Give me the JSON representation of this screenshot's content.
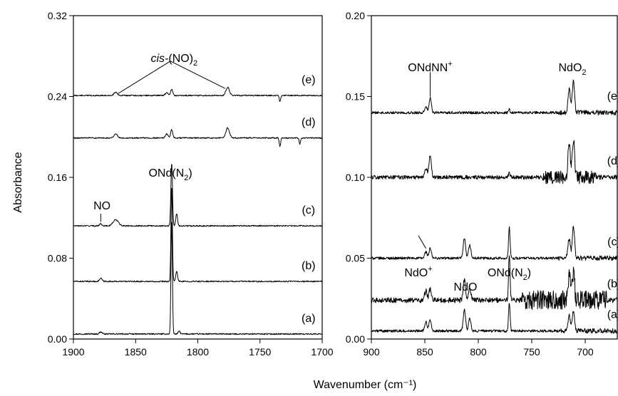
{
  "ylabel": "Absorbance",
  "xlabel": "Wavenumber (cm⁻¹)",
  "chart_data": [
    {
      "type": "line",
      "panel": "left",
      "xlim": [
        1900,
        1700
      ],
      "ylim": [
        0.0,
        0.32
      ],
      "x_ticks": [
        1900,
        1850,
        1800,
        1750,
        1700
      ],
      "y_ticks": [
        "0.00",
        "0.08",
        "0.16",
        "0.24",
        "0.32"
      ],
      "series": [
        {
          "name": "(a)",
          "baseline": 0.005,
          "peaks": [
            {
              "x": 1821,
              "h": 0.114,
              "w": 0.8
            },
            {
              "x": 1878,
              "h": 0.002,
              "w": 1.5
            },
            {
              "x": 1815,
              "h": 0.003,
              "w": 1
            }
          ]
        },
        {
          "name": "(b)",
          "baseline": 0.057,
          "peaks": [
            {
              "x": 1821,
              "h": 0.095,
              "w": 0.8
            },
            {
              "x": 1817,
              "h": 0.01,
              "w": 1
            },
            {
              "x": 1878,
              "h": 0.003,
              "w": 1.5
            }
          ]
        },
        {
          "name": "(c)",
          "baseline": 0.112,
          "peaks": [
            {
              "x": 1821,
              "h": 0.062,
              "w": 0.9
            },
            {
              "x": 1817,
              "h": 0.012,
              "w": 1
            },
            {
              "x": 1866,
              "h": 0.006,
              "w": 3
            },
            {
              "x": 1878,
              "h": 0.002,
              "w": 1.5
            }
          ]
        },
        {
          "name": "(d)",
          "baseline": 0.199,
          "peaks": [
            {
              "x": 1821,
              "h": 0.008,
              "w": 1.2
            },
            {
              "x": 1825,
              "h": 0.004,
              "w": 1.5
            },
            {
              "x": 1866,
              "h": 0.004,
              "w": 2
            },
            {
              "x": 1776,
              "h": 0.01,
              "w": 2
            },
            {
              "x": 1734,
              "h": -0.008,
              "w": 0.8
            },
            {
              "x": 1718,
              "h": -0.006,
              "w": 0.8
            }
          ]
        },
        {
          "name": "(e)",
          "baseline": 0.241,
          "peaks": [
            {
              "x": 1821,
              "h": 0.006,
              "w": 1.2
            },
            {
              "x": 1825,
              "h": 0.003,
              "w": 1.5
            },
            {
              "x": 1866,
              "h": 0.003,
              "w": 2
            },
            {
              "x": 1776,
              "h": 0.008,
              "w": 2
            },
            {
              "x": 1734,
              "h": -0.006,
              "w": 0.8
            }
          ]
        }
      ],
      "annotations": [
        {
          "id": "cis",
          "text_main": "cis-(NO)",
          "sub": "2"
        },
        {
          "id": "ond",
          "text_main": "ONd(N",
          "sub": "2",
          "tail": ")"
        },
        {
          "id": "no",
          "text_main": "NO"
        }
      ]
    },
    {
      "type": "line",
      "panel": "right",
      "xlim": [
        900,
        670
      ],
      "ylim": [
        0.0,
        0.2
      ],
      "x_ticks": [
        900,
        850,
        800,
        750,
        700
      ],
      "y_ticks": [
        "0.00",
        "0.05",
        "0.10",
        "0.15",
        "0.20"
      ],
      "series": [
        {
          "name": "(a)",
          "baseline": 0.005,
          "peaks": [
            {
              "x": 849,
              "h": 0.006,
              "w": 1.5
            },
            {
              "x": 845,
              "h": 0.007,
              "w": 1.5
            },
            {
              "x": 813,
              "h": 0.013,
              "w": 1.5
            },
            {
              "x": 808,
              "h": 0.008,
              "w": 1.5
            },
            {
              "x": 771,
              "h": 0.018,
              "w": 1
            },
            {
              "x": 715,
              "h": 0.01,
              "w": 1.5
            },
            {
              "x": 711,
              "h": 0.012,
              "w": 1.5
            }
          ]
        },
        {
          "name": "(b)",
          "baseline": 0.024,
          "peaks": [
            {
              "x": 849,
              "h": 0.006,
              "w": 1.5
            },
            {
              "x": 845,
              "h": 0.007,
              "w": 1.5
            },
            {
              "x": 813,
              "h": 0.013,
              "w": 1.5
            },
            {
              "x": 808,
              "h": 0.008,
              "w": 1.5
            },
            {
              "x": 771,
              "h": 0.028,
              "w": 1
            },
            {
              "x": 715,
              "h": 0.014,
              "w": 1.5
            },
            {
              "x": 711,
              "h": 0.016,
              "w": 1.5
            }
          ]
        },
        {
          "name": "(c)",
          "baseline": 0.05,
          "peaks": [
            {
              "x": 849,
              "h": 0.004,
              "w": 1.5
            },
            {
              "x": 845,
              "h": 0.006,
              "w": 1.5
            },
            {
              "x": 813,
              "h": 0.012,
              "w": 1.5
            },
            {
              "x": 808,
              "h": 0.008,
              "w": 1.5
            },
            {
              "x": 771,
              "h": 0.019,
              "w": 1
            },
            {
              "x": 715,
              "h": 0.012,
              "w": 1.5
            },
            {
              "x": 711,
              "h": 0.02,
              "w": 1.5
            }
          ]
        },
        {
          "name": "(d)",
          "baseline": 0.1,
          "peaks": [
            {
              "x": 849,
              "h": 0.006,
              "w": 1.5
            },
            {
              "x": 845,
              "h": 0.014,
              "w": 1.5
            },
            {
              "x": 771,
              "h": 0.003,
              "w": 1
            },
            {
              "x": 715,
              "h": 0.02,
              "w": 1.5
            },
            {
              "x": 711,
              "h": 0.025,
              "w": 1.5
            }
          ]
        },
        {
          "name": "(e)",
          "baseline": 0.14,
          "peaks": [
            {
              "x": 849,
              "h": 0.004,
              "w": 1.5
            },
            {
              "x": 845,
              "h": 0.009,
              "w": 1.5
            },
            {
              "x": 771,
              "h": 0.002,
              "w": 1
            },
            {
              "x": 715,
              "h": 0.015,
              "w": 1.5
            },
            {
              "x": 711,
              "h": 0.02,
              "w": 1.5
            }
          ]
        }
      ],
      "annotations": [
        {
          "id": "ondnn",
          "text_main": "ONdNN",
          "sup": "+"
        },
        {
          "id": "ndo2",
          "text_main": "NdO",
          "sub": "2"
        },
        {
          "id": "ndoplus",
          "text_main": "NdO",
          "sup": "+"
        },
        {
          "id": "ndo",
          "text_main": "NdO"
        },
        {
          "id": "ond",
          "text_main": "ONd(N",
          "sub": "2",
          "tail": ")"
        }
      ]
    }
  ]
}
